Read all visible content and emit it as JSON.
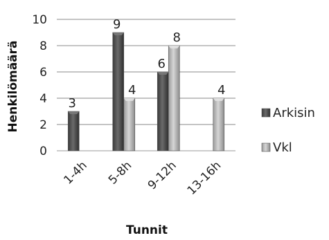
{
  "chart_data": {
    "type": "bar",
    "categories": [
      "1-4h",
      "5-8h",
      "9-12h",
      "13-16h"
    ],
    "series": [
      {
        "name": "Arkisin",
        "values": [
          3,
          9,
          6,
          null
        ],
        "color": "#505050"
      },
      {
        "name": "Vkl",
        "values": [
          null,
          4,
          8,
          4
        ],
        "color": "#b4b4b4"
      }
    ],
    "xlabel": "Tunnit",
    "ylabel": "Henkilömäärä",
    "ylim": [
      0,
      10
    ],
    "yticks": [
      0,
      2,
      4,
      6,
      8,
      10
    ],
    "grid": true,
    "legend": "right",
    "style": "3d-beveled"
  }
}
